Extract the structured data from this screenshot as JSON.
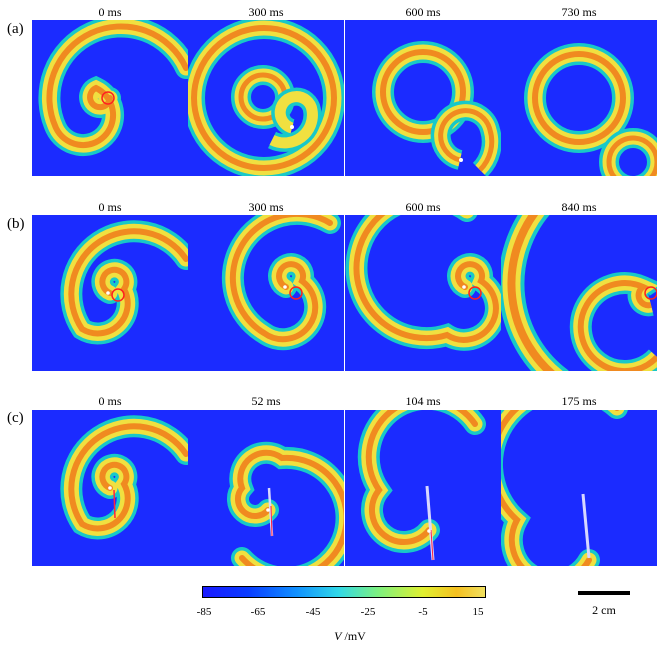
{
  "rows": [
    {
      "label": "(a)",
      "times": [
        "0 ms",
        "300 ms",
        "600 ms",
        "730 ms"
      ]
    },
    {
      "label": "(b)",
      "times": [
        "0 ms",
        "300 ms",
        "600 ms",
        "840 ms"
      ]
    },
    {
      "label": "(c)",
      "times": [
        "0 ms",
        "52 ms",
        "104 ms",
        "175 ms"
      ]
    }
  ],
  "colorbar": {
    "ticks": [
      "-85",
      "-65",
      "-45",
      "-25",
      "-5",
      "15"
    ],
    "unit_var": "V",
    "unit_text": " /mV"
  },
  "scale_bar": {
    "label": "2 cm"
  },
  "colors": {
    "background": "#1b2bff",
    "wave_outer": "#18c8c8",
    "wave_mid": "#f0e040",
    "wave_core": "#f08a20",
    "marker": "#ff2020"
  }
}
